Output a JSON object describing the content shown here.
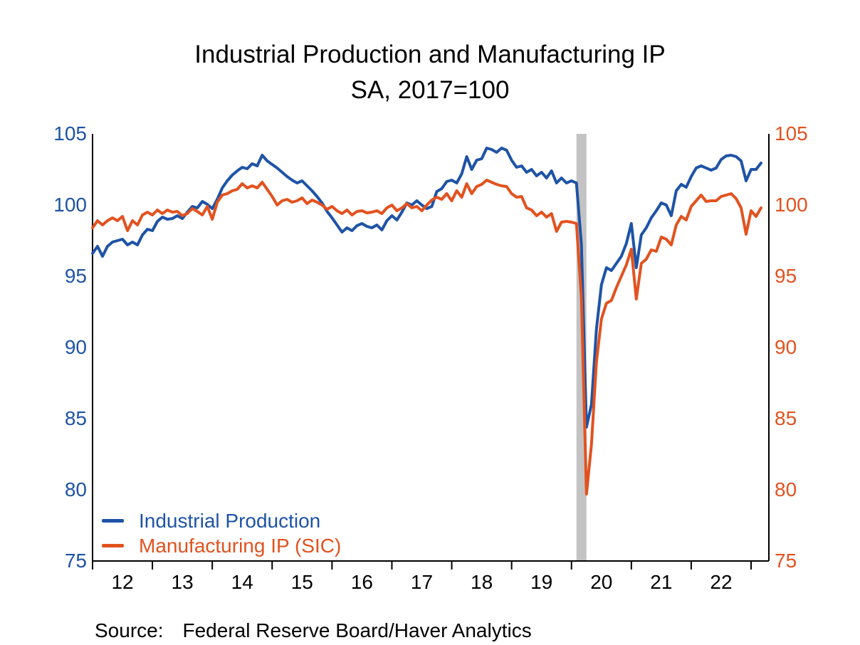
{
  "title": {
    "line1": "Industrial Production and Manufacturing IP",
    "line2": "SA, 2017=100"
  },
  "legend": {
    "items": [
      {
        "label": "Industrial Production",
        "color": "#1E53A6"
      },
      {
        "label": "Manufacturing IP (SIC)",
        "color": "#E2521F"
      }
    ]
  },
  "source": {
    "label": "Source:",
    "text": "Federal Reserve Board/Haver Analytics"
  },
  "chart_data": {
    "type": "line",
    "frequency": "monthly",
    "x_start": "2012-01",
    "x_end": "2023-03",
    "x_tick_year_labels": [
      "12",
      "13",
      "14",
      "15",
      "16",
      "17",
      "18",
      "19",
      "20",
      "21",
      "22"
    ],
    "ylim": [
      75,
      105
    ],
    "yticks": [
      105,
      100,
      95,
      90,
      85,
      80,
      75
    ],
    "grid": false,
    "legend_position": "inside-bottom-left",
    "left_axis_label_color": "#1E53A6",
    "right_axis_label_color": "#E2521F",
    "axis_line_color": "#000000",
    "recession_band": {
      "start": "2020-02",
      "end": "2020-04",
      "color": "#C3C3C3"
    },
    "series": [
      {
        "name": "Industrial Production",
        "color": "#1E53A6",
        "values": [
          96.6,
          97.1,
          96.4,
          97.1,
          97.4,
          97.5,
          97.6,
          97.2,
          97.4,
          97.2,
          97.9,
          98.3,
          98.2,
          98.85,
          99.15,
          99.0,
          99.05,
          99.25,
          99.05,
          99.5,
          99.9,
          99.8,
          100.25,
          100.05,
          99.75,
          100.4,
          101.2,
          101.7,
          102.1,
          102.4,
          102.65,
          102.55,
          102.9,
          102.75,
          103.5,
          103.1,
          102.85,
          102.6,
          102.3,
          102.0,
          101.75,
          101.55,
          101.7,
          101.35,
          101.0,
          100.6,
          100.15,
          99.55,
          99.1,
          98.6,
          98.1,
          98.4,
          98.2,
          98.55,
          98.7,
          98.5,
          98.4,
          98.6,
          98.25,
          98.9,
          99.25,
          98.95,
          99.5,
          100.15,
          100.0,
          100.3,
          100.0,
          99.75,
          99.9,
          100.95,
          101.15,
          101.65,
          101.75,
          101.55,
          102.2,
          103.4,
          102.5,
          103.15,
          103.25,
          104.0,
          103.9,
          103.7,
          104.0,
          103.85,
          103.15,
          102.65,
          102.75,
          102.3,
          102.5,
          102.05,
          102.3,
          101.9,
          102.4,
          101.55,
          101.9,
          101.55,
          101.7,
          101.55,
          97.2,
          84.4,
          86.0,
          91.3,
          94.4,
          95.6,
          95.4,
          95.9,
          96.4,
          97.3,
          98.7,
          95.6,
          97.9,
          98.4,
          99.1,
          99.6,
          100.15,
          100.0,
          99.25,
          101.0,
          101.45,
          101.25,
          102.0,
          102.6,
          102.75,
          102.6,
          102.45,
          102.6,
          103.2,
          103.45,
          103.5,
          103.4,
          103.1,
          101.7,
          102.5,
          102.5,
          102.95
        ]
      },
      {
        "name": "Manufacturing IP (SIC)",
        "color": "#E2521F",
        "values": [
          98.4,
          98.9,
          98.6,
          98.9,
          99.1,
          98.9,
          99.2,
          98.2,
          98.9,
          98.6,
          99.3,
          99.5,
          99.3,
          99.65,
          99.4,
          99.65,
          99.5,
          99.55,
          99.25,
          99.4,
          99.75,
          99.55,
          99.3,
          99.9,
          99.0,
          100.2,
          100.7,
          100.8,
          101.0,
          101.1,
          101.5,
          101.2,
          101.35,
          101.2,
          101.6,
          101.1,
          100.6,
          100.0,
          100.3,
          100.4,
          100.2,
          100.3,
          100.5,
          100.1,
          100.35,
          100.2,
          100.0,
          99.7,
          99.9,
          99.6,
          99.4,
          99.65,
          99.3,
          99.55,
          99.6,
          99.45,
          99.5,
          99.6,
          99.4,
          99.8,
          100.0,
          99.6,
          99.8,
          100.1,
          99.8,
          99.9,
          99.6,
          100.0,
          100.35,
          100.55,
          100.4,
          100.8,
          100.3,
          101.0,
          100.55,
          101.5,
          100.8,
          101.3,
          101.45,
          101.75,
          101.6,
          101.45,
          101.35,
          101.3,
          100.8,
          100.55,
          100.6,
          99.8,
          99.65,
          99.25,
          99.5,
          99.15,
          99.4,
          98.15,
          98.8,
          98.85,
          98.8,
          98.7,
          93.5,
          79.7,
          83.2,
          89.0,
          92.0,
          93.1,
          93.3,
          94.2,
          95.0,
          95.8,
          96.9,
          93.4,
          95.9,
          96.2,
          96.85,
          96.75,
          97.75,
          97.6,
          97.2,
          98.6,
          99.2,
          98.95,
          99.9,
          100.3,
          100.7,
          100.25,
          100.3,
          100.3,
          100.6,
          100.7,
          100.8,
          100.45,
          99.8,
          97.95,
          99.6,
          99.2,
          99.8
        ]
      }
    ]
  }
}
